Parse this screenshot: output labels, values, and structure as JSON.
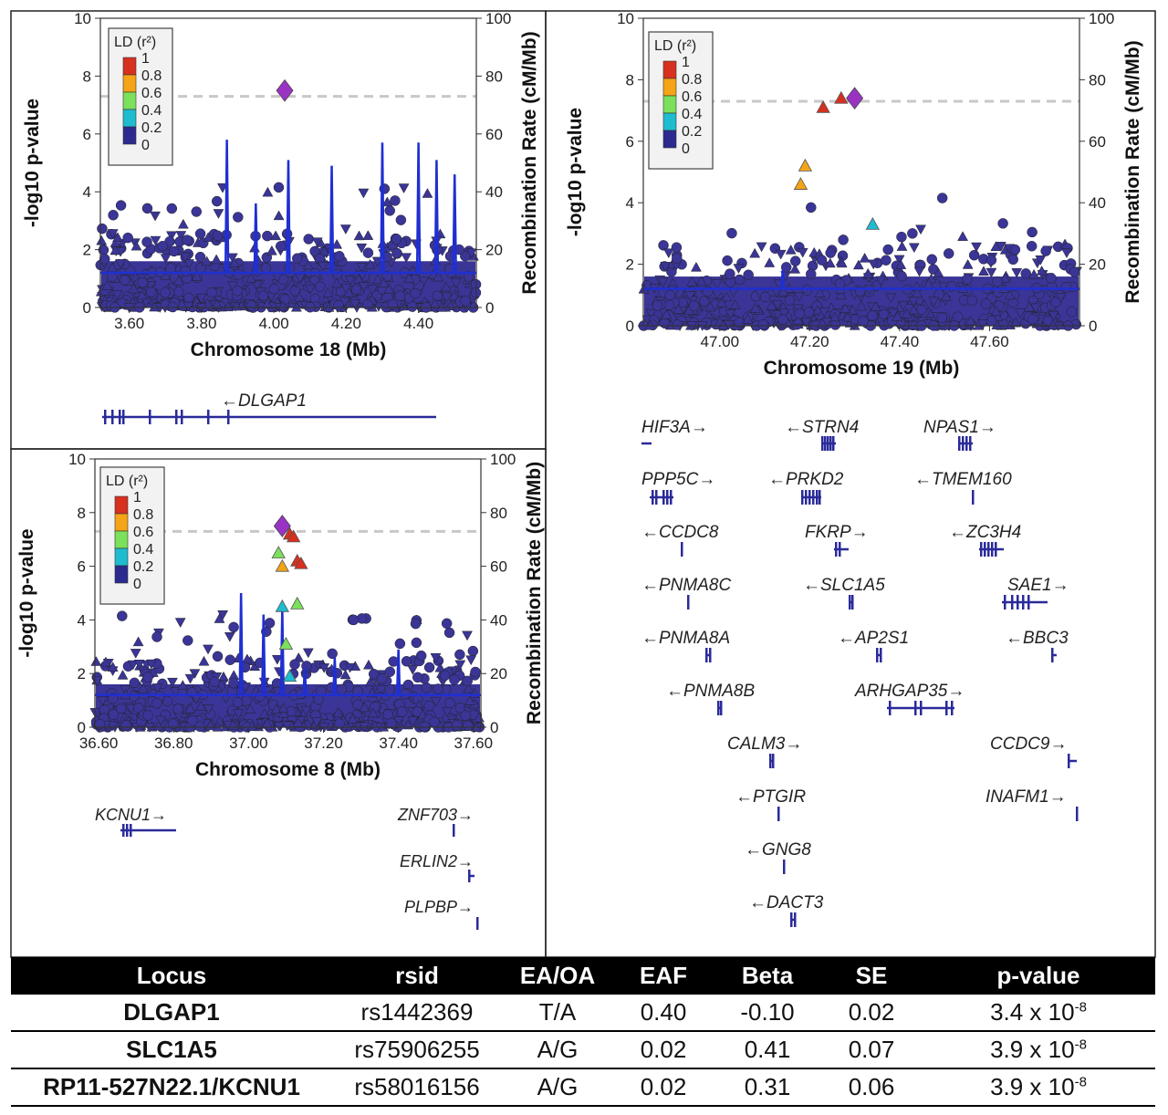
{
  "chart_data": [
    {
      "type": "scatter",
      "panel": "chr18",
      "xlabel": "Chromosome 18 (Mb)",
      "ylabel": "-log10 p-value",
      "ylabel_right": "Recombination Rate (cM/Mb)",
      "xlim": [
        3.52,
        4.56
      ],
      "ylim": [
        0,
        10
      ],
      "y2lim": [
        0,
        100
      ],
      "xticks": [
        "3.60",
        "3.80",
        "4.00",
        "4.20",
        "4.40"
      ],
      "yticks": [
        "0",
        "2",
        "4",
        "6",
        "8",
        "10"
      ],
      "y2ticks": [
        "0",
        "20",
        "40",
        "60",
        "80",
        "100"
      ],
      "threshold": 7.3,
      "legend": {
        "title": "LD (r²)",
        "labels": [
          "1",
          "0.8",
          "0.6",
          "0.4",
          "0.2",
          "0"
        ],
        "colors": [
          "#d7301f",
          "#f4a416",
          "#7be05b",
          "#1fbcd0",
          "#2a2a8f"
        ]
      },
      "lead_snp": {
        "x": 4.03,
        "y": 7.5,
        "color": "#9a33c4"
      },
      "highlighted": [],
      "recombination_peaks": [
        [
          3.87,
          58
        ],
        [
          3.95,
          36
        ],
        [
          4.04,
          51
        ],
        [
          4.16,
          49
        ],
        [
          4.3,
          57
        ],
        [
          4.4,
          57
        ],
        [
          4.45,
          51
        ],
        [
          4.5,
          46
        ]
      ],
      "genes": [
        {
          "label": "←DLGAP1",
          "start": 3.52,
          "end": 4.49
        }
      ]
    },
    {
      "type": "scatter",
      "panel": "chr19",
      "xlabel": "Chromosome 19 (Mb)",
      "ylabel": "-log10 p-value",
      "ylabel_right": "Recombination Rate (cM/Mb)",
      "xlim": [
        46.83,
        47.8
      ],
      "ylim": [
        0,
        10
      ],
      "y2lim": [
        0,
        100
      ],
      "xticks": [
        "47.00",
        "47.20",
        "47.40",
        "47.60"
      ],
      "yticks": [
        "0",
        "2",
        "4",
        "6",
        "8",
        "10"
      ],
      "y2ticks": [
        "0",
        "20",
        "40",
        "60",
        "80",
        "100"
      ],
      "threshold": 7.3,
      "legend": {
        "title": "LD (r²)",
        "labels": [
          "1",
          "0.8",
          "0.6",
          "0.4",
          "0.2",
          "0"
        ],
        "colors": [
          "#d7301f",
          "#f4a416",
          "#7be05b",
          "#1fbcd0",
          "#2a2a8f"
        ]
      },
      "lead_snp": {
        "x": 47.3,
        "y": 7.4,
        "color": "#9a33c4"
      },
      "highlighted": [
        {
          "x": 47.27,
          "y": 7.4,
          "r2": 0.9
        },
        {
          "x": 47.23,
          "y": 7.1,
          "r2": 0.9
        },
        {
          "x": 47.19,
          "y": 5.2,
          "r2": 0.7
        },
        {
          "x": 47.18,
          "y": 4.6,
          "r2": 0.7
        },
        {
          "x": 47.34,
          "y": 3.3,
          "r2": 0.3
        }
      ],
      "recombination_peaks": [
        [
          47.14,
          18
        ]
      ],
      "genes": [
        {
          "label": "HIF3A→"
        },
        {
          "label": "←STRN4"
        },
        {
          "label": "NPAS1→"
        },
        {
          "label": "PPP5C→"
        },
        {
          "label": "←PRKD2"
        },
        {
          "label": "←TMEM160"
        },
        {
          "label": "←CCDC8"
        },
        {
          "label": "FKRP→"
        },
        {
          "label": "←ZC3H4"
        },
        {
          "label": "←PNMA8C"
        },
        {
          "label": "←SLC1A5"
        },
        {
          "label": "SAE1→"
        },
        {
          "label": "←PNMA8A"
        },
        {
          "label": "←AP2S1"
        },
        {
          "label": "←BBC3"
        },
        {
          "label": "←PNMA8B"
        },
        {
          "label": "ARHGAP35→"
        },
        {
          "label": "CALM3→"
        },
        {
          "label": "CCDC9→"
        },
        {
          "label": "←PTGIR"
        },
        {
          "label": "INAFM1→"
        },
        {
          "label": "←GNG8"
        },
        {
          "label": "←DACT3"
        }
      ]
    },
    {
      "type": "scatter",
      "panel": "chr8",
      "xlabel": "Chromosome 8 (Mb)",
      "ylabel": "-log10 p-value",
      "ylabel_right": "Recombination Rate (cM/Mb)",
      "xlim": [
        36.59,
        37.62
      ],
      "ylim": [
        0,
        10
      ],
      "y2lim": [
        0,
        100
      ],
      "xticks": [
        "36.60",
        "36.80",
        "37.00",
        "37.20",
        "37.40",
        "37.60"
      ],
      "yticks": [
        "0",
        "2",
        "4",
        "6",
        "8",
        "10"
      ],
      "y2ticks": [
        "0",
        "20",
        "40",
        "60",
        "80",
        "100"
      ],
      "threshold": 7.3,
      "legend": {
        "title": "LD (r²)",
        "labels": [
          "1",
          "0.8",
          "0.6",
          "0.4",
          "0.2",
          "0"
        ],
        "colors": [
          "#d7301f",
          "#f4a416",
          "#7be05b",
          "#1fbcd0",
          "#2a2a8f"
        ]
      },
      "lead_snp": {
        "x": 37.09,
        "y": 7.5,
        "color": "#9a33c4"
      },
      "highlighted": [
        {
          "x": 37.11,
          "y": 7.2,
          "r2": 0.9
        },
        {
          "x": 37.12,
          "y": 7.1,
          "r2": 0.9
        },
        {
          "x": 37.13,
          "y": 6.2,
          "r2": 0.9
        },
        {
          "x": 37.14,
          "y": 6.1,
          "r2": 0.9
        },
        {
          "x": 37.08,
          "y": 6.5,
          "r2": 0.5
        },
        {
          "x": 37.09,
          "y": 6.0,
          "r2": 0.7
        },
        {
          "x": 37.09,
          "y": 4.5,
          "r2": 0.3
        },
        {
          "x": 37.13,
          "y": 4.6,
          "r2": 0.5
        },
        {
          "x": 37.1,
          "y": 3.1,
          "r2": 0.5
        },
        {
          "x": 37.11,
          "y": 1.9,
          "r2": 0.3
        }
      ],
      "recombination_peaks": [
        [
          36.98,
          50
        ],
        [
          37.04,
          42
        ],
        [
          37.09,
          44
        ],
        [
          37.15,
          22
        ],
        [
          37.23,
          26
        ],
        [
          37.4,
          29
        ]
      ],
      "genes": [
        {
          "label": "KCNU1→",
          "start": 36.63,
          "end": 36.76
        },
        {
          "label": "ZNF703→",
          "start": 37.55,
          "end": 37.56
        },
        {
          "label": "ERLIN2→",
          "start": 37.58,
          "end": 37.59
        },
        {
          "label": "PLPBP→",
          "start": 37.6,
          "end": 37.61
        }
      ]
    }
  ],
  "table": {
    "headers": [
      "Locus",
      "rsid",
      "EA/OA",
      "EAF",
      "Beta",
      "SE",
      "p-value"
    ],
    "rows": [
      [
        "DLGAP1",
        "rs1442369",
        "T/A",
        "0.40",
        "-0.10",
        "0.02",
        "3.4 x 10",
        "-8"
      ],
      [
        "SLC1A5",
        "rs75906255",
        "A/G",
        "0.02",
        "0.41",
        "0.07",
        "3.9 x 10",
        "-8"
      ],
      [
        "RP11-527N22.1/KCNU1",
        "rs58016156",
        "A/G",
        "0.02",
        "0.31",
        "0.06",
        "3.9 x 10",
        "-8"
      ]
    ]
  }
}
